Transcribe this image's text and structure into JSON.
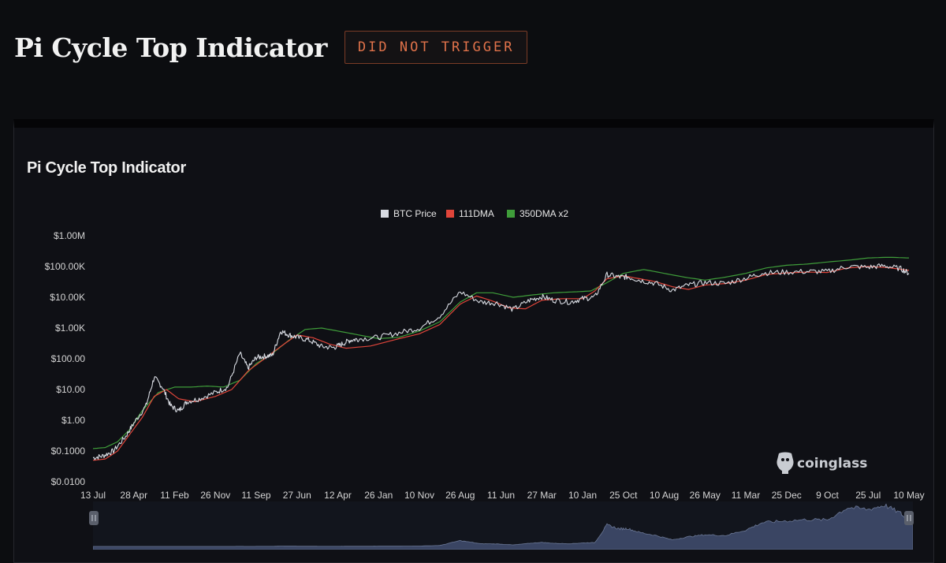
{
  "header": {
    "title": "Pi Cycle Top Indicator",
    "status_badge": "DID NOT TRIGGER"
  },
  "card": {
    "title": "Pi Cycle Top Indicator",
    "brand": "coinglass"
  },
  "colors": {
    "btc": "#d9dce3",
    "dma111": "#e0453a",
    "dma350x2": "#3f9d3a",
    "badge": "#e0724a",
    "slider_fill": "#3a4563"
  },
  "chart_data": {
    "type": "line",
    "y_scale": "log",
    "ylim": [
      0.01,
      1000000
    ],
    "y_ticks": [
      {
        "value": 1000000,
        "label": "$1.00M"
      },
      {
        "value": 100000,
        "label": "$100.00K"
      },
      {
        "value": 10000,
        "label": "$10.00K"
      },
      {
        "value": 1000,
        "label": "$1.00K"
      },
      {
        "value": 100,
        "label": "$100.00"
      },
      {
        "value": 10,
        "label": "$10.00"
      },
      {
        "value": 1,
        "label": "$1.00"
      },
      {
        "value": 0.1,
        "label": "$0.1000"
      },
      {
        "value": 0.01,
        "label": "$0.0100"
      }
    ],
    "x_ticks": [
      "13 Jul",
      "28 Apr",
      "11 Feb",
      "26 Nov",
      "11 Sep",
      "27 Jun",
      "12 Apr",
      "26 Jan",
      "10 Nov",
      "26 Aug",
      "11 Jun",
      "27 Mar",
      "10 Jan",
      "25 Oct",
      "10 Aug",
      "26 May",
      "11 Mar",
      "25 Dec",
      "9 Oct",
      "25 Jul",
      "10 May"
    ],
    "legend": [
      "BTC Price",
      "111DMA",
      "350DMA x2"
    ],
    "series": [
      {
        "name": "BTC Price",
        "x": [
          0,
          0.25,
          0.5,
          0.8,
          1.0,
          1.3,
          1.5,
          1.7,
          1.9,
          2.1,
          2.3,
          2.6,
          3.0,
          3.3,
          3.6,
          3.8,
          4.0,
          4.2,
          4.4,
          4.6,
          4.8,
          5.0,
          5.3,
          5.6,
          5.9,
          6.1,
          6.3,
          6.5,
          7.0,
          7.5,
          8.0,
          8.5,
          9.0,
          9.5,
          9.9,
          10.3,
          10.7,
          11.0,
          11.3,
          11.7,
          12.0,
          12.3,
          12.6,
          12.9,
          13.1,
          13.4,
          13.8,
          14.2,
          14.6,
          15.0,
          15.5,
          16.0,
          16.4,
          16.9,
          17.5,
          18.0,
          18.5,
          19.0,
          19.4,
          19.8,
          20.0
        ],
        "y": [
          0.06,
          0.07,
          0.1,
          0.3,
          0.8,
          3,
          25,
          12,
          3,
          2,
          4,
          5,
          8,
          12,
          150,
          50,
          110,
          120,
          130,
          800,
          600,
          500,
          400,
          250,
          230,
          300,
          400,
          440,
          500,
          700,
          1000,
          2500,
          15000,
          7000,
          6500,
          4000,
          8000,
          10500,
          8000,
          7000,
          9000,
          10000,
          55000,
          45000,
          46000,
          36000,
          28000,
          17000,
          25000,
          30000,
          28000,
          42000,
          61000,
          65000,
          69000,
          68000,
          100000,
          95000,
          106000,
          85000,
          60000
        ]
      },
      {
        "name": "111DMA",
        "x": [
          0,
          0.3,
          0.6,
          0.9,
          1.2,
          1.5,
          1.8,
          2.1,
          2.5,
          3.0,
          3.4,
          3.8,
          4.2,
          4.6,
          5.0,
          5.4,
          5.8,
          6.2,
          6.8,
          7.5,
          8.0,
          8.5,
          9.0,
          9.4,
          9.8,
          10.2,
          10.6,
          11.0,
          11.5,
          12.0,
          12.3,
          12.6,
          13.0,
          13.4,
          13.8,
          14.2,
          14.6,
          15.0,
          15.5,
          16.0,
          16.5,
          17.0,
          17.5,
          18.0,
          18.5,
          19.0,
          19.5,
          20.0
        ],
        "y": [
          0.05,
          0.055,
          0.1,
          0.35,
          1.2,
          6,
          10,
          5,
          4,
          6,
          10,
          40,
          100,
          250,
          600,
          480,
          300,
          220,
          260,
          450,
          650,
          1300,
          6000,
          11000,
          7500,
          4500,
          4200,
          8000,
          9000,
          9000,
          16000,
          40000,
          50000,
          40000,
          32000,
          22000,
          18000,
          25000,
          28000,
          36000,
          55000,
          62000,
          66000,
          64000,
          90000,
          100000,
          92000,
          75000
        ]
      },
      {
        "name": "350DMA x2",
        "x": [
          0,
          0.3,
          0.6,
          0.9,
          1.2,
          1.6,
          2.0,
          2.4,
          2.8,
          3.2,
          3.6,
          4.0,
          4.4,
          4.8,
          5.2,
          5.6,
          6.0,
          6.5,
          7.0,
          7.5,
          8.0,
          8.5,
          9.0,
          9.4,
          9.8,
          10.3,
          10.8,
          11.3,
          11.8,
          12.2,
          12.6,
          13.0,
          13.5,
          14.0,
          14.5,
          15.0,
          15.5,
          16.0,
          16.5,
          17.0,
          17.5,
          18.0,
          18.5,
          19.0,
          19.5,
          20.0
        ],
        "y": [
          0.12,
          0.13,
          0.2,
          0.5,
          2,
          8,
          12,
          12,
          13,
          12,
          20,
          70,
          150,
          400,
          900,
          1000,
          800,
          600,
          450,
          500,
          800,
          1600,
          7000,
          14000,
          14000,
          10000,
          12000,
          14000,
          15000,
          16000,
          30000,
          60000,
          80000,
          60000,
          45000,
          36000,
          45000,
          60000,
          90000,
          110000,
          120000,
          140000,
          160000,
          190000,
          200000,
          190000
        ]
      }
    ]
  }
}
